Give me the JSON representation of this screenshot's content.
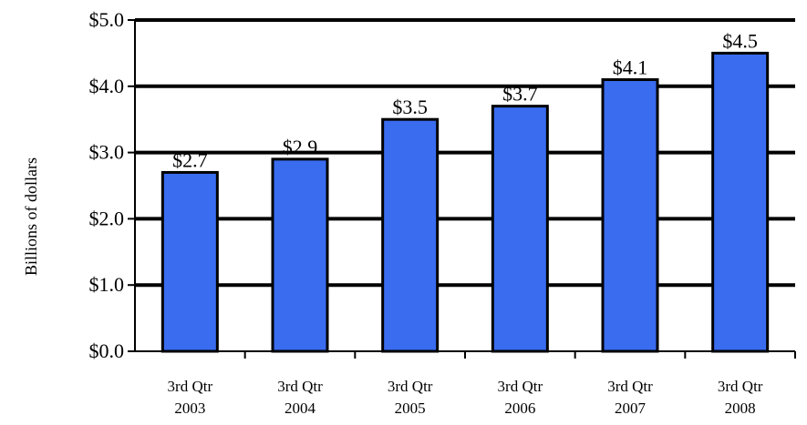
{
  "chart_data": {
    "type": "bar",
    "title": "",
    "xlabel": "",
    "ylabel": "Billions of dollars",
    "categories": [
      [
        "3rd Qtr",
        "2003"
      ],
      [
        "3rd Qtr",
        "2004"
      ],
      [
        "3rd Qtr",
        "2005"
      ],
      [
        "3rd Qtr",
        "2006"
      ],
      [
        "3rd Qtr",
        "2007"
      ],
      [
        "3rd Qtr",
        "2008"
      ]
    ],
    "values": [
      2.7,
      2.9,
      3.5,
      3.7,
      4.1,
      4.5
    ],
    "data_labels": [
      "$2.7",
      "$2.9",
      "$3.5",
      "$3.7",
      "$4.1",
      "$4.5"
    ],
    "yticks": [
      0,
      1,
      2,
      3,
      4,
      5
    ],
    "ytick_labels": [
      "$0.0",
      "$1.0",
      "$2.0",
      "$3.0",
      "$4.0",
      "$5.0"
    ],
    "ylim": [
      0,
      5
    ],
    "grid": true,
    "legend": "none",
    "bar_color": "#3a6cf0",
    "bar_edge_color": "#000000",
    "grid_color": "#000000"
  }
}
